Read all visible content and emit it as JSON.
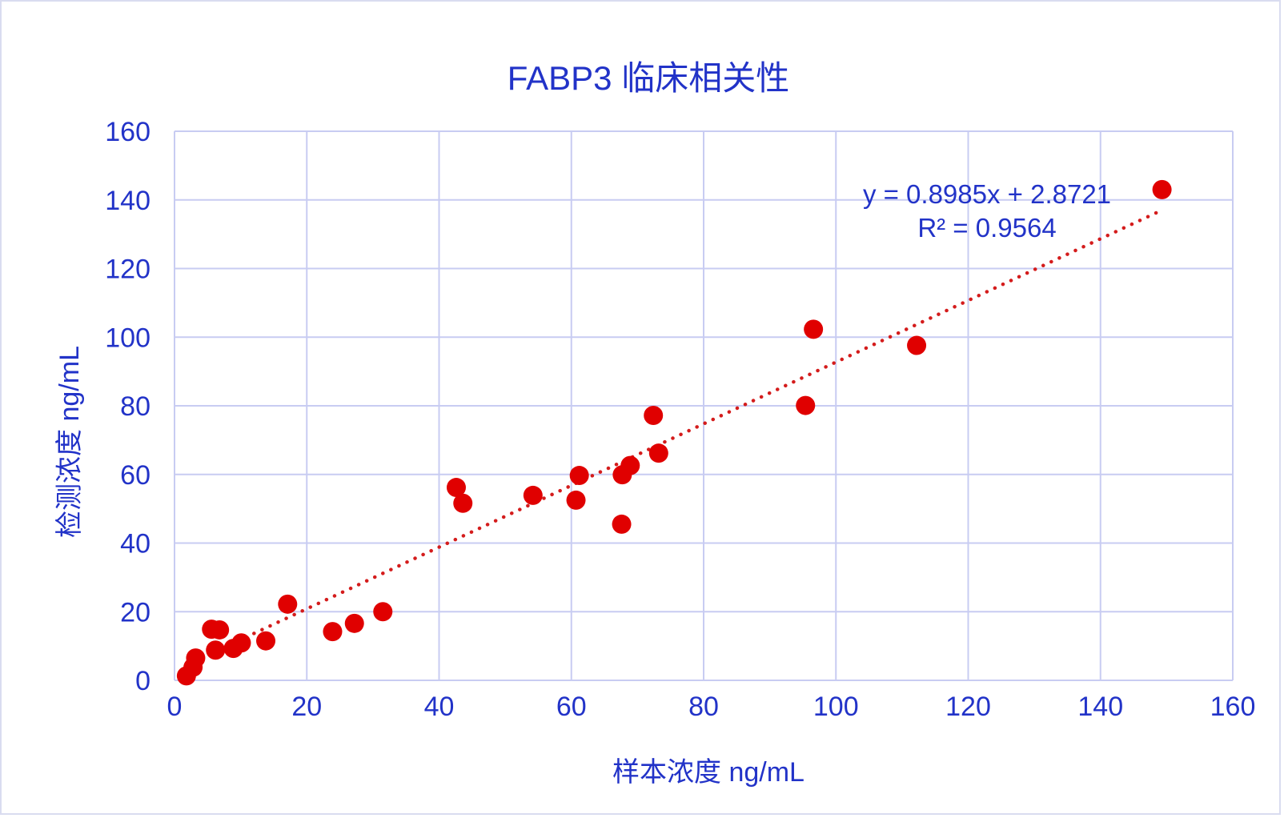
{
  "chart_data": {
    "type": "scatter",
    "title": "FABP3 临床相关性",
    "xlabel": "样本浓度 ng/mL",
    "ylabel": "检测浓度 ng/mL",
    "xlim": [
      0,
      160
    ],
    "ylim": [
      0,
      160
    ],
    "xticks": [
      "0",
      "20",
      "40",
      "60",
      "80",
      "100",
      "120",
      "140",
      "160"
    ],
    "yticks": [
      "0",
      "20",
      "40",
      "60",
      "80",
      "100",
      "120",
      "140",
      "160"
    ],
    "grid": true,
    "legend": "none",
    "series": [
      {
        "points": [
          [
            1.8,
            1.3
          ],
          [
            2.8,
            3.8
          ],
          [
            3.2,
            6.5
          ],
          [
            5.6,
            14.9
          ],
          [
            6.8,
            14.7
          ],
          [
            6.2,
            8.8
          ],
          [
            8.9,
            9.3
          ],
          [
            10.1,
            10.9
          ],
          [
            13.8,
            11.5
          ],
          [
            17.1,
            22.2
          ],
          [
            23.9,
            14.2
          ],
          [
            27.2,
            16.6
          ],
          [
            31.5,
            20.0
          ],
          [
            42.6,
            56.2
          ],
          [
            43.6,
            51.6
          ],
          [
            54.2,
            53.9
          ],
          [
            60.7,
            52.5
          ],
          [
            61.2,
            59.7
          ],
          [
            67.6,
            45.5
          ],
          [
            67.7,
            59.9
          ],
          [
            68.9,
            62.6
          ],
          [
            72.4,
            77.2
          ],
          [
            73.2,
            66.2
          ],
          [
            95.4,
            80.1
          ],
          [
            96.6,
            102.3
          ],
          [
            112.2,
            97.6
          ],
          [
            149.3,
            143.0
          ]
        ]
      }
    ],
    "trendline": {
      "slope": 0.8985,
      "intercept": 2.8721,
      "x_range": [
        10.8,
        149.3
      ],
      "equation": "y = 0.8985x + 2.8721",
      "r_squared": "R² = 0.9564"
    },
    "colors": {
      "points": "#e00000",
      "trendline": "#d41c1c",
      "text": "#2233c8",
      "grid": "#c8ccf2"
    }
  }
}
